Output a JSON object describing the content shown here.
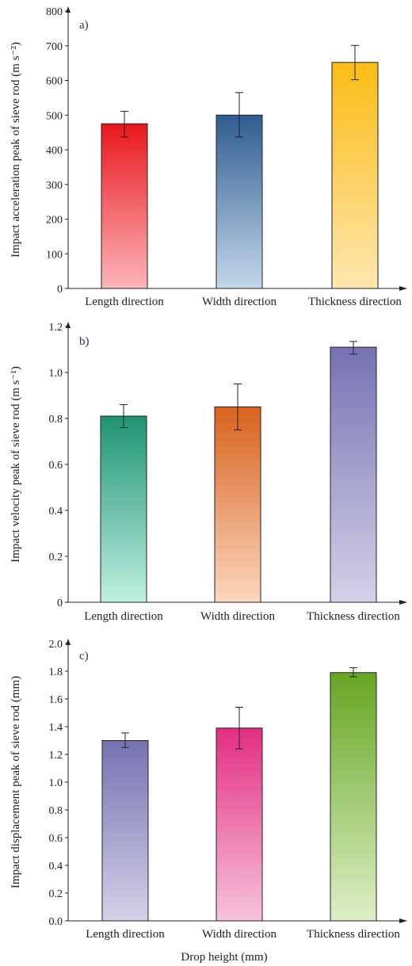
{
  "figure": {
    "xlabel": "Drop height (mm)"
  },
  "chart_data": [
    {
      "type": "bar",
      "panel_label": "a)",
      "categories": [
        "Length direction",
        "Width direction",
        "Thickness direction"
      ],
      "values": [
        475,
        500,
        652
      ],
      "errors_low": [
        437,
        437,
        602
      ],
      "errors_high": [
        511,
        565,
        701
      ],
      "ylabel": "Impact acceleration peak of sieve rod (m s⁻²)",
      "ylim": [
        0,
        800
      ],
      "yticks": [
        "0",
        "100",
        "200",
        "300",
        "400",
        "500",
        "600",
        "700",
        "800"
      ],
      "ytick_values": [
        0,
        100,
        200,
        300,
        400,
        500,
        600,
        700,
        800
      ],
      "colors": [
        [
          "#e8181c",
          "#fdb5ba"
        ],
        [
          "#2f5d90",
          "#c4d7ea"
        ],
        [
          "#fbbc14",
          "#fee7b0"
        ]
      ],
      "grid": false
    },
    {
      "type": "bar",
      "panel_label": "b)",
      "categories": [
        "Length direction",
        "Width direction",
        "Thickness direction"
      ],
      "values": [
        0.81,
        0.85,
        1.11
      ],
      "errors_low": [
        0.76,
        0.75,
        1.08
      ],
      "errors_high": [
        0.86,
        0.95,
        1.135
      ],
      "ylabel": "Impact velocity peak of sieve rod (m s⁻¹)",
      "ylim": [
        0,
        1.2
      ],
      "yticks": [
        "0",
        "0.2",
        "0.4",
        "0.6",
        "0.8",
        "1.0",
        "1.2"
      ],
      "ytick_values": [
        0,
        0.2,
        0.4,
        0.6,
        0.8,
        1.0,
        1.2
      ],
      "colors": [
        [
          "#1e9371",
          "#bff1e2"
        ],
        [
          "#d8621e",
          "#fbd7bf"
        ],
        [
          "#7672b2",
          "#d4d1e8"
        ]
      ],
      "grid": false
    },
    {
      "type": "bar",
      "panel_label": "c)",
      "categories": [
        "Length direction",
        "Width direction",
        "Thickness direction"
      ],
      "values": [
        1.3,
        1.39,
        1.79
      ],
      "errors_low": [
        1.25,
        1.24,
        1.76
      ],
      "errors_high": [
        1.355,
        1.54,
        1.825
      ],
      "ylabel": "Impact displacement peak of sieve rod (mm)",
      "ylim": [
        0,
        2.0
      ],
      "yticks": [
        "0.0",
        "0.2",
        "0.4",
        "0.6",
        "0.8",
        "1.0",
        "1.2",
        "1.4",
        "1.6",
        "1.8",
        "2.0"
      ],
      "ytick_values": [
        0,
        0.2,
        0.4,
        0.6,
        0.8,
        1.0,
        1.2,
        1.4,
        1.6,
        1.8,
        2.0
      ],
      "colors": [
        [
          "#7672b2",
          "#d4d1e8"
        ],
        [
          "#e32e81",
          "#f7c3dd"
        ],
        [
          "#66a522",
          "#ddf0c6"
        ]
      ],
      "grid": false
    }
  ]
}
